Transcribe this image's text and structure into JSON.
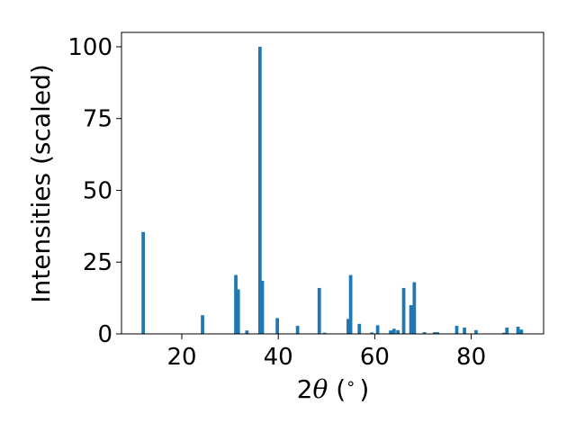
{
  "chart_data": {
    "type": "bar",
    "title": "",
    "xlabel_prefix": "2",
    "xlabel_symbol": "θ",
    "xlabel_suffix": " (",
    "xlabel_unit": "∘",
    "xlabel_close": ")",
    "ylabel": "Intensities (scaled)",
    "xlim": [
      7.5,
      95
    ],
    "ylim": [
      0,
      105
    ],
    "xticks": [
      20,
      40,
      60,
      80
    ],
    "yticks": [
      0,
      25,
      50,
      75,
      100
    ],
    "bar_width_deg": 0.7,
    "bar_color": "#1f77b4",
    "grid": false,
    "x": [
      12.0,
      24.3,
      31.2,
      31.7,
      33.5,
      36.2,
      36.7,
      39.8,
      44.0,
      48.5,
      49.6,
      54.5,
      55.0,
      56.8,
      59.4,
      60.6,
      63.3,
      64.0,
      64.8,
      66.0,
      67.5,
      68.2,
      70.3,
      72.4,
      73.0,
      77.0,
      78.6,
      81.0,
      86.8,
      87.4,
      89.7,
      90.4
    ],
    "values": [
      35.5,
      6.5,
      20.5,
      15.5,
      1.2,
      100.0,
      18.5,
      5.5,
      2.8,
      16.0,
      0.4,
      5.2,
      20.5,
      3.5,
      0.5,
      3.0,
      1.2,
      1.8,
      1.3,
      16.0,
      10.0,
      18.0,
      0.6,
      0.6,
      0.6,
      2.8,
      2.2,
      1.3,
      0.4,
      2.2,
      2.5,
      1.5
    ]
  }
}
